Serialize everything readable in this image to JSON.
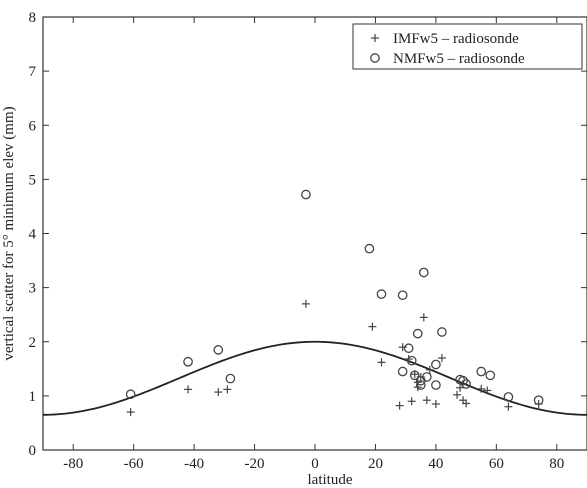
{
  "chart_data": {
    "type": "scatter",
    "title": "",
    "xlabel": "latitude",
    "ylabel": "vertical scatter for 5° minimum elev (mm)",
    "xlim": [
      -90,
      90
    ],
    "ylim": [
      0,
      8
    ],
    "x_ticks": [
      -80,
      -60,
      -40,
      -20,
      0,
      20,
      40,
      60,
      80
    ],
    "y_ticks": [
      0,
      1,
      2,
      3,
      4,
      5,
      6,
      7,
      8
    ],
    "grid": false,
    "legend_position": "top-right",
    "series": [
      {
        "name": "IMFw5 – radiosonde",
        "marker": "plus",
        "points": [
          [
            -61,
            0.7
          ],
          [
            -42,
            1.12
          ],
          [
            -32,
            1.07
          ],
          [
            -29,
            1.12
          ],
          [
            -3,
            2.7
          ],
          [
            19,
            2.28
          ],
          [
            22,
            1.62
          ],
          [
            28,
            0.82
          ],
          [
            29,
            1.9
          ],
          [
            31,
            1.68
          ],
          [
            32,
            0.9
          ],
          [
            33,
            1.4
          ],
          [
            34,
            1.16
          ],
          [
            34,
            1.25
          ],
          [
            35,
            1.35
          ],
          [
            36,
            2.45
          ],
          [
            37,
            0.92
          ],
          [
            38,
            1.48
          ],
          [
            40,
            0.85
          ],
          [
            42,
            1.7
          ],
          [
            47,
            1.02
          ],
          [
            48,
            1.15
          ],
          [
            49,
            0.92
          ],
          [
            50,
            0.86
          ],
          [
            55,
            1.13
          ],
          [
            57,
            1.1
          ],
          [
            64,
            0.8
          ],
          [
            74,
            0.85
          ]
        ]
      },
      {
        "name": "NMFw5 – radiosonde",
        "marker": "circle",
        "points": [
          [
            -61,
            1.03
          ],
          [
            -42,
            1.63
          ],
          [
            -32,
            1.85
          ],
          [
            -28,
            1.32
          ],
          [
            -3,
            4.72
          ],
          [
            18,
            3.72
          ],
          [
            22,
            2.88
          ],
          [
            29,
            2.86
          ],
          [
            29,
            1.45
          ],
          [
            31,
            1.88
          ],
          [
            32,
            1.65
          ],
          [
            33,
            1.38
          ],
          [
            34,
            2.15
          ],
          [
            35,
            1.28
          ],
          [
            35,
            1.2
          ],
          [
            36,
            3.28
          ],
          [
            37,
            1.35
          ],
          [
            40,
            1.58
          ],
          [
            40,
            1.2
          ],
          [
            42,
            2.18
          ],
          [
            48,
            1.3
          ],
          [
            49,
            1.28
          ],
          [
            50,
            1.22
          ],
          [
            55,
            1.45
          ],
          [
            58,
            1.38
          ],
          [
            64,
            0.98
          ],
          [
            74,
            0.92
          ]
        ]
      }
    ],
    "model_curve": {
      "formula": "1.325 + 0.675*cos(latitude_rad*2)",
      "x_range": [
        -90,
        90
      ]
    }
  }
}
